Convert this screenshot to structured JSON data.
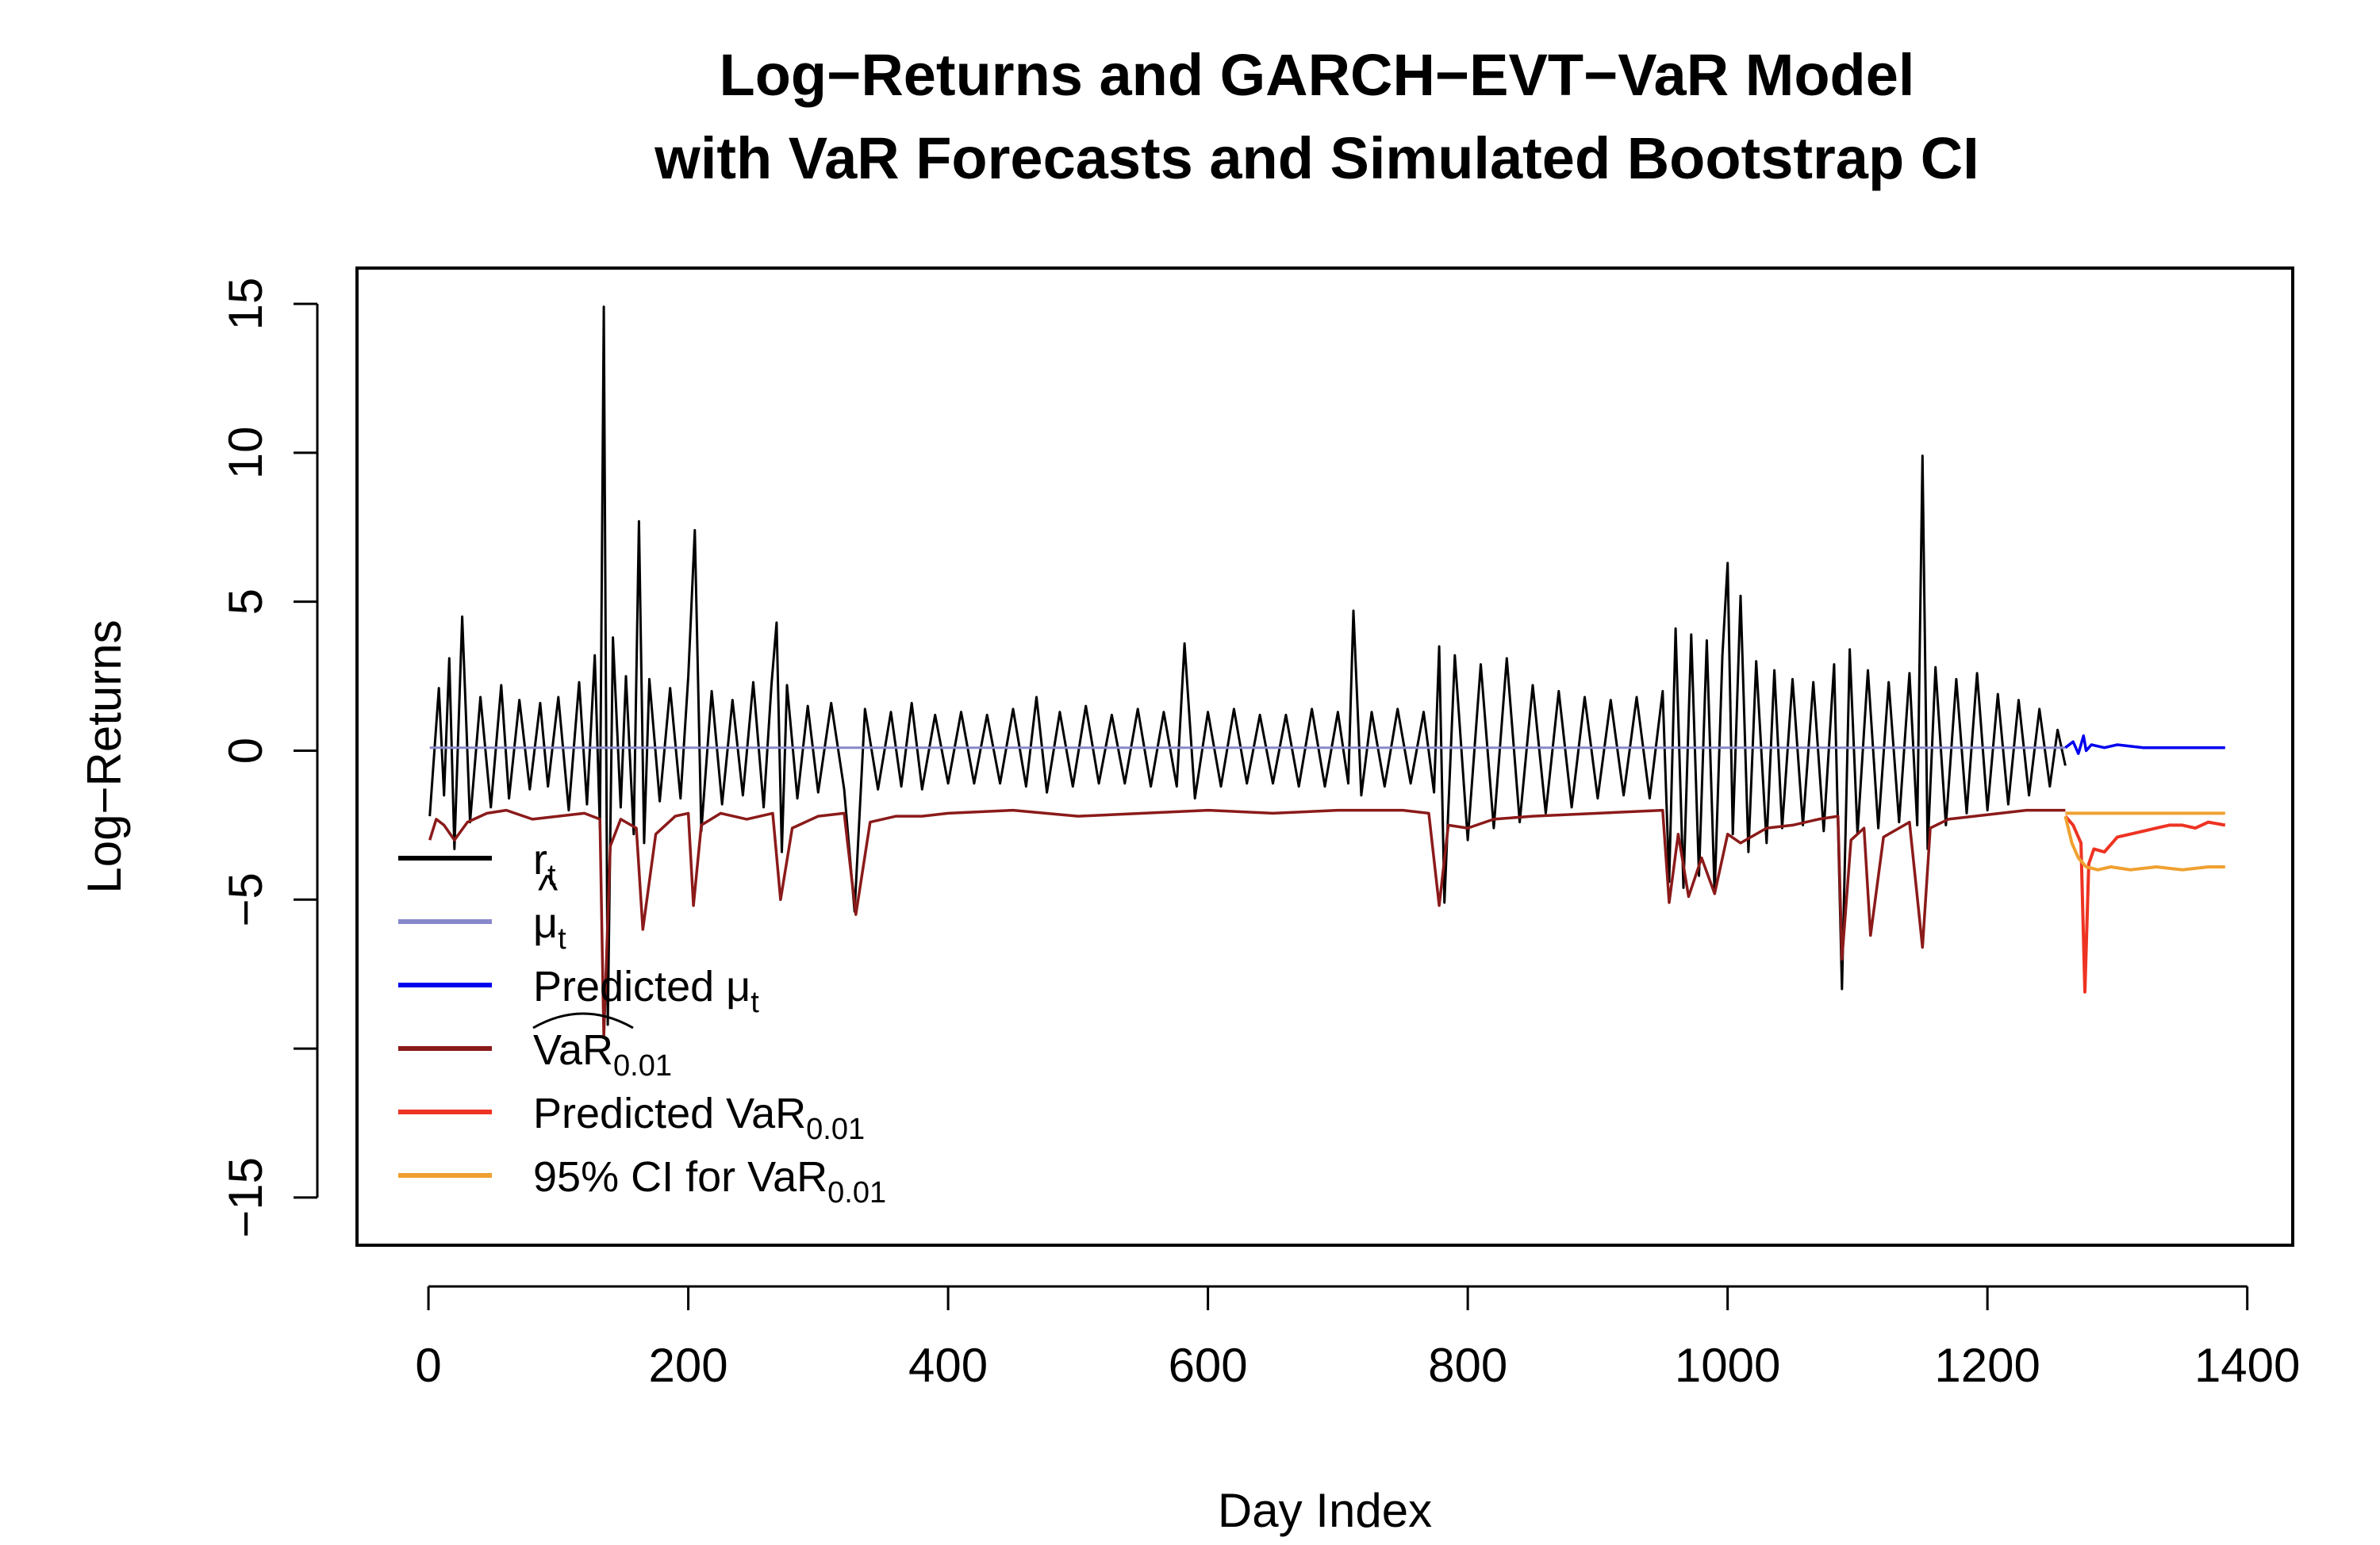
{
  "chart_data": {
    "type": "line",
    "title": [
      "Log−Returns and GARCH−EVT−VaR Model",
      "with VaR Forecasts and Simulated Bootstrap CI"
    ],
    "xlabel": "Day Index",
    "ylabel": "Log−Returns",
    "xlim": [
      -55,
      1435
    ],
    "ylim": [
      -16.6,
      16.2
    ],
    "x_ticks": [
      0,
      200,
      400,
      600,
      800,
      1000,
      1200,
      1400
    ],
    "x_tick_labels": [
      "0",
      "200",
      "400",
      "600",
      "800",
      "1000",
      "1200",
      "1400"
    ],
    "y_ticks": [
      -15,
      -10,
      -5,
      0,
      5,
      10,
      15
    ],
    "y_tick_labels": [
      "−15",
      "",
      "−5",
      "0",
      "5",
      "10",
      "15"
    ],
    "grid": false,
    "legend_position": "left",
    "colors": {
      "returns": "#000000",
      "fitted_mu": "#8888cc",
      "predicted_mu": "#0000ee",
      "fitted_var": "#8b1a1a",
      "predicted_var": "#ee3322",
      "ci": "#f0a030"
    },
    "legend": [
      {
        "key": "returns",
        "base": "r",
        "sub": "t",
        "hat": false,
        "wide_hat": false
      },
      {
        "key": "fitted_mu",
        "base": "μ",
        "sub": "t",
        "hat": true,
        "wide_hat": false
      },
      {
        "key": "predicted_mu",
        "base": "Predicted μ",
        "sub": "t",
        "hat": false,
        "wide_hat": false
      },
      {
        "key": "fitted_var",
        "base": "VaR",
        "sub": "0.01",
        "hat": false,
        "wide_hat": true
      },
      {
        "key": "predicted_var",
        "base": "Predicted VaR",
        "sub": "0.01",
        "hat": false,
        "wide_hat": false
      },
      {
        "key": "ci",
        "base": "95% CI for VaR",
        "sub": "0.01",
        "hat": false,
        "wide_hat": false
      }
    ],
    "series": [
      {
        "key": "returns",
        "x": [
          1,
          8,
          12,
          16,
          20,
          26,
          32,
          40,
          48,
          56,
          62,
          70,
          78,
          86,
          92,
          100,
          108,
          116,
          122,
          128,
          132,
          135,
          138,
          142,
          148,
          152,
          158,
          162,
          166,
          170,
          178,
          186,
          194,
          200,
          205,
          210,
          218,
          226,
          234,
          242,
          250,
          258,
          264,
          268,
          272,
          276,
          284,
          292,
          300,
          310,
          320,
          328,
          336,
          346,
          356,
          364,
          372,
          380,
          390,
          400,
          410,
          420,
          430,
          440,
          450,
          460,
          468,
          476,
          486,
          496,
          506,
          516,
          526,
          536,
          546,
          556,
          566,
          576,
          582,
          590,
          600,
          610,
          620,
          630,
          640,
          650,
          660,
          670,
          680,
          690,
          700,
          708,
          712,
          718,
          726,
          736,
          746,
          756,
          766,
          774,
          778,
          782,
          790,
          800,
          810,
          820,
          830,
          840,
          850,
          860,
          870,
          880,
          890,
          900,
          910,
          920,
          930,
          940,
          950,
          955,
          960,
          966,
          972,
          978,
          984,
          990,
          996,
          1000,
          1004,
          1010,
          1016,
          1022,
          1030,
          1036,
          1042,
          1050,
          1058,
          1066,
          1074,
          1082,
          1088,
          1094,
          1100,
          1108,
          1116,
          1124,
          1132,
          1140,
          1146,
          1150,
          1154,
          1160,
          1168,
          1176,
          1184,
          1192,
          1200,
          1208,
          1216,
          1224,
          1232,
          1240,
          1248,
          1254,
          1260
        ],
        "y": [
          -2.2,
          2.1,
          -1.5,
          3.1,
          -3.3,
          4.5,
          -2.4,
          1.8,
          -1.9,
          2.2,
          -1.6,
          1.7,
          -1.3,
          1.6,
          -1.2,
          1.8,
          -2.0,
          2.3,
          -1.8,
          3.2,
          -2.6,
          14.9,
          -9.2,
          3.8,
          -1.9,
          2.5,
          -2.8,
          7.7,
          -3.1,
          2.4,
          -1.7,
          2.1,
          -1.6,
          2.5,
          7.4,
          -2.7,
          2.0,
          -1.8,
          1.7,
          -1.5,
          2.3,
          -1.9,
          2.2,
          4.3,
          -3.4,
          2.2,
          -1.6,
          1.5,
          -1.4,
          1.6,
          -1.3,
          -5.4,
          1.4,
          -1.3,
          1.3,
          -1.2,
          1.6,
          -1.3,
          1.2,
          -1.1,
          1.3,
          -1.1,
          1.2,
          -1.1,
          1.4,
          -1.2,
          1.8,
          -1.4,
          1.3,
          -1.2,
          1.5,
          -1.1,
          1.2,
          -1.1,
          1.4,
          -1.2,
          1.3,
          -1.2,
          3.6,
          -1.6,
          1.3,
          -1.2,
          1.4,
          -1.1,
          1.2,
          -1.1,
          1.2,
          -1.2,
          1.4,
          -1.2,
          1.3,
          -1.1,
          4.7,
          -1.5,
          1.3,
          -1.2,
          1.4,
          -1.1,
          1.3,
          -1.4,
          3.5,
          -5.1,
          3.2,
          -3.0,
          2.9,
          -2.6,
          3.1,
          -2.4,
          2.2,
          -2.1,
          2.0,
          -1.9,
          1.8,
          -1.6,
          1.7,
          -1.5,
          1.8,
          -1.6,
          2.0,
          -4.4,
          4.1,
          -4.6,
          3.9,
          -4.2,
          3.7,
          -4.8,
          3.2,
          6.3,
          -2.8,
          5.2,
          -3.4,
          3.0,
          -3.1,
          2.7,
          -2.6,
          2.4,
          -2.5,
          2.3,
          -2.7,
          2.9,
          -8.0,
          3.4,
          -2.8,
          2.7,
          -2.6,
          2.3,
          -2.4,
          2.6,
          -2.5,
          9.9,
          -3.3,
          2.8,
          -2.5,
          2.4,
          -2.1,
          2.6,
          -2.0,
          1.9,
          -1.8,
          1.7,
          -1.5,
          1.4,
          -1.2,
          0.7,
          -0.5
        ]
      },
      {
        "key": "fitted_mu",
        "x": [
          1,
          1260
        ],
        "y": [
          0.1,
          0.1
        ]
      },
      {
        "key": "fitted_var",
        "x": [
          1,
          6,
          12,
          20,
          30,
          45,
          60,
          80,
          100,
          120,
          132,
          135,
          140,
          148,
          160,
          165,
          175,
          190,
          200,
          204,
          210,
          225,
          245,
          265,
          271,
          280,
          300,
          320,
          329,
          340,
          360,
          380,
          400,
          450,
          500,
          550,
          600,
          650,
          700,
          750,
          770,
          778,
          785,
          800,
          820,
          850,
          900,
          950,
          955,
          962,
          970,
          980,
          990,
          1000,
          1010,
          1030,
          1050,
          1070,
          1085,
          1088,
          1095,
          1105,
          1110,
          1120,
          1140,
          1150,
          1156,
          1170,
          1190,
          1210,
          1230,
          1260
        ],
        "y": [
          -3.0,
          -2.3,
          -2.5,
          -3.0,
          -2.4,
          -2.1,
          -2.0,
          -2.3,
          -2.2,
          -2.1,
          -2.3,
          -9.6,
          -3.2,
          -2.3,
          -2.6,
          -6.0,
          -2.8,
          -2.2,
          -2.1,
          -5.2,
          -2.5,
          -2.1,
          -2.3,
          -2.1,
          -5.0,
          -2.6,
          -2.2,
          -2.1,
          -5.5,
          -2.4,
          -2.2,
          -2.2,
          -2.1,
          -2.0,
          -2.2,
          -2.1,
          -2.0,
          -2.1,
          -2.0,
          -2.0,
          -2.1,
          -5.2,
          -2.5,
          -2.6,
          -2.3,
          -2.2,
          -2.1,
          -2.0,
          -5.1,
          -2.8,
          -4.9,
          -3.6,
          -4.8,
          -2.8,
          -3.1,
          -2.6,
          -2.5,
          -2.3,
          -2.2,
          -7.0,
          -3.0,
          -2.6,
          -6.2,
          -2.9,
          -2.4,
          -6.6,
          -2.6,
          -2.3,
          -2.2,
          -2.1,
          -2.0,
          -2.0
        ]
      },
      {
        "key": "predicted_mu",
        "x": [
          1260,
          1266,
          1270,
          1274,
          1276,
          1280,
          1290,
          1300,
          1320,
          1340,
          1360,
          1383
        ],
        "y": [
          0.1,
          0.3,
          -0.1,
          0.5,
          0.0,
          0.2,
          0.1,
          0.2,
          0.1,
          0.1,
          0.1,
          0.1
        ]
      },
      {
        "key": "predicted_var",
        "x": [
          1260,
          1266,
          1272,
          1275,
          1278,
          1282,
          1290,
          1300,
          1310,
          1320,
          1330,
          1340,
          1350,
          1360,
          1370,
          1383
        ],
        "y": [
          -2.2,
          -2.5,
          -3.1,
          -8.1,
          -3.8,
          -3.3,
          -3.4,
          -2.9,
          -2.8,
          -2.7,
          -2.6,
          -2.5,
          -2.5,
          -2.6,
          -2.4,
          -2.5
        ]
      },
      {
        "key": "ci",
        "line": "upper",
        "x": [
          1260,
          1290,
          1320,
          1350,
          1383
        ],
        "y": [
          -2.1,
          -2.1,
          -2.1,
          -2.1,
          -2.1
        ]
      },
      {
        "key": "ci",
        "line": "lower",
        "x": [
          1260,
          1265,
          1270,
          1276,
          1285,
          1295,
          1310,
          1330,
          1350,
          1370,
          1383
        ],
        "y": [
          -2.2,
          -3.1,
          -3.6,
          -3.9,
          -4.0,
          -3.9,
          -4.0,
          -3.9,
          -4.0,
          -3.9,
          -3.9
        ]
      }
    ]
  }
}
